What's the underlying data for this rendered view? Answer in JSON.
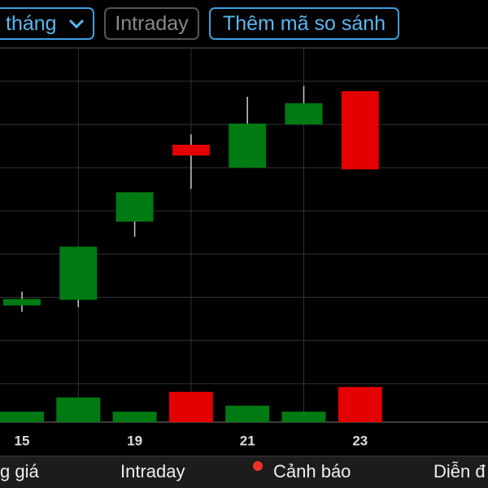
{
  "ui": {
    "top_buttons": [
      "tháng",
      "Intraday",
      "Thêm mã so sánh"
    ],
    "tabs": [
      "g giá",
      "Intraday",
      "Cảnh báo",
      "Diễn đ"
    ]
  },
  "chart_data": {
    "type": "candlestick",
    "categories": [
      "15",
      null,
      "19",
      null,
      "21",
      null,
      "23"
    ],
    "open": [
      2.81,
      2.94,
      4.75,
      6.53,
      6.0,
      7.0,
      7.77
    ],
    "high": [
      3.13,
      4.17,
      5.43,
      6.77,
      7.64,
      7.89,
      7.77
    ],
    "low": [
      2.66,
      2.77,
      4.4,
      5.51,
      6.0,
      7.0,
      5.96
    ],
    "close": [
      2.96,
      4.17,
      5.43,
      6.28,
      7.02,
      7.49,
      5.96
    ],
    "volume": [
      2.8,
      6.6,
      2.8,
      8.1,
      4.4,
      2.8,
      9.4
    ],
    "up_color": "#007a12",
    "down_color": "#e40000",
    "ylim": [
      0.11,
      8.75
    ],
    "yticks": [
      1,
      2,
      3,
      4,
      5,
      6,
      7,
      8
    ],
    "y2lim": [
      0,
      100
    ],
    "grid": true
  }
}
